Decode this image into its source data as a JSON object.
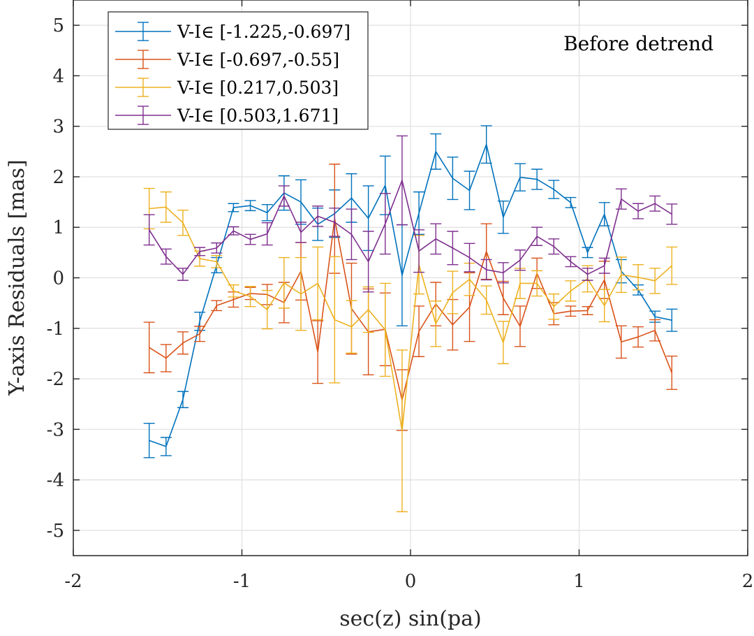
{
  "chart_data": {
    "type": "line",
    "subtype": "errorbar",
    "xlabel": "sec(z) sin(pa)",
    "ylabel": "Y-axis Residuals [mas]",
    "annotation": "Before detrend",
    "xlim": [
      -2,
      2
    ],
    "ylim": [
      -5.5,
      5.5
    ],
    "xticks": [
      -2,
      -1,
      0,
      1,
      2
    ],
    "xtick_labels": [
      "-2",
      "-1",
      "0",
      "1",
      "2"
    ],
    "yticks": [
      -5,
      -4,
      -3,
      -2,
      -1,
      0,
      1,
      2,
      3,
      4,
      5
    ],
    "ytick_labels": [
      "-5",
      "-4",
      "-3",
      "-2",
      "-1",
      "0",
      "1",
      "2",
      "3",
      "4",
      "5"
    ],
    "grid": true,
    "legend_position": "top-left",
    "x": [
      -1.55,
      -1.45,
      -1.35,
      -1.25,
      -1.15,
      -1.05,
      -0.95,
      -0.85,
      -0.75,
      -0.65,
      -0.55,
      -0.45,
      -0.35,
      -0.25,
      -0.15,
      -0.05,
      0.05,
      0.15,
      0.25,
      0.35,
      0.45,
      0.55,
      0.65,
      0.75,
      0.85,
      0.95,
      1.05,
      1.15,
      1.25,
      1.35,
      1.45,
      1.55
    ],
    "series": [
      {
        "name": "V-I∈ [-1.225,-0.697]",
        "color": "#0072BD",
        "values": [
          -3.22,
          -3.34,
          -2.41,
          -0.86,
          0.25,
          1.39,
          1.43,
          1.29,
          1.68,
          1.5,
          1.06,
          1.27,
          1.58,
          1.18,
          1.83,
          0.05,
          1.28,
          2.5,
          1.97,
          1.73,
          2.64,
          1.2,
          1.99,
          1.95,
          1.75,
          1.49,
          0.5,
          1.26,
          0.13,
          -0.24,
          -0.77,
          -0.84
        ],
        "errors": [
          0.34,
          0.18,
          0.16,
          0.18,
          0.15,
          0.08,
          0.1,
          0.16,
          0.34,
          0.44,
          0.32,
          0.47,
          0.48,
          0.64,
          0.58,
          1.0,
          0.42,
          0.35,
          0.42,
          0.38,
          0.37,
          0.32,
          0.27,
          0.2,
          0.18,
          0.1,
          0.1,
          0.23,
          0.23,
          0.1,
          0.11,
          0.22
        ]
      },
      {
        "name": "V-I∈ [-0.697,-0.55]",
        "color": "#D95319",
        "values": [
          -1.38,
          -1.59,
          -1.29,
          -1.11,
          -0.55,
          -0.43,
          -0.31,
          -0.33,
          -0.49,
          0.13,
          -1.47,
          1.17,
          -0.61,
          -1.07,
          -1.02,
          -2.42,
          -1.06,
          -0.52,
          -0.93,
          -0.58,
          0.52,
          -0.4,
          -0.96,
          0.09,
          -0.71,
          -0.66,
          -0.65,
          -0.04,
          -1.27,
          -1.17,
          -1.04,
          -1.88
        ],
        "errors": [
          0.5,
          0.27,
          0.22,
          0.15,
          0.1,
          0.15,
          0.12,
          0.2,
          0.4,
          0.57,
          0.62,
          1.08,
          0.9,
          0.85,
          0.72,
          0.6,
          0.5,
          0.43,
          0.5,
          0.68,
          0.55,
          0.33,
          0.4,
          0.3,
          0.22,
          0.1,
          0.08,
          0.37,
          0.32,
          0.2,
          0.21,
          0.33
        ]
      },
      {
        "name": "V-I∈ [0.217,0.503]",
        "color": "#EDB120",
        "values": [
          1.37,
          1.4,
          1.09,
          0.38,
          0.32,
          -0.26,
          -0.37,
          -0.63,
          -0.1,
          -0.32,
          -0.11,
          -0.83,
          -0.97,
          -0.63,
          -1.03,
          -3.03,
          0.26,
          -0.91,
          -0.29,
          -0.03,
          -0.44,
          -1.28,
          -0.11,
          -0.11,
          -0.57,
          -0.26,
          -0.02,
          -0.55,
          0.06,
          0.01,
          -0.06,
          0.24
        ],
        "errors": [
          0.4,
          0.3,
          0.25,
          0.15,
          0.12,
          0.12,
          0.2,
          0.38,
          0.5,
          0.72,
          0.72,
          1.25,
          0.52,
          0.45,
          0.92,
          1.6,
          0.58,
          0.45,
          0.42,
          0.32,
          0.28,
          0.42,
          0.3,
          0.25,
          0.25,
          0.2,
          0.26,
          0.32,
          0.35,
          0.25,
          0.25,
          0.37
        ]
      },
      {
        "name": "V-I∈ [0.503,1.671]",
        "color": "#7E2F8E",
        "values": [
          0.95,
          0.42,
          0.07,
          0.52,
          0.59,
          0.93,
          0.76,
          0.87,
          1.62,
          0.9,
          1.22,
          1.1,
          0.86,
          0.32,
          1.07,
          1.93,
          0.53,
          0.77,
          0.59,
          0.4,
          0.16,
          0.1,
          0.35,
          0.82,
          0.62,
          0.32,
          0.07,
          0.24,
          1.56,
          1.32,
          1.47,
          1.26
        ],
        "errors": [
          0.3,
          0.15,
          0.12,
          0.08,
          0.1,
          0.08,
          0.1,
          0.22,
          0.2,
          0.2,
          0.2,
          0.28,
          0.5,
          0.6,
          0.6,
          0.88,
          0.42,
          0.3,
          0.33,
          0.28,
          0.2,
          0.2,
          0.2,
          0.18,
          0.15,
          0.1,
          0.12,
          0.15,
          0.2,
          0.15,
          0.15,
          0.2
        ]
      }
    ]
  }
}
